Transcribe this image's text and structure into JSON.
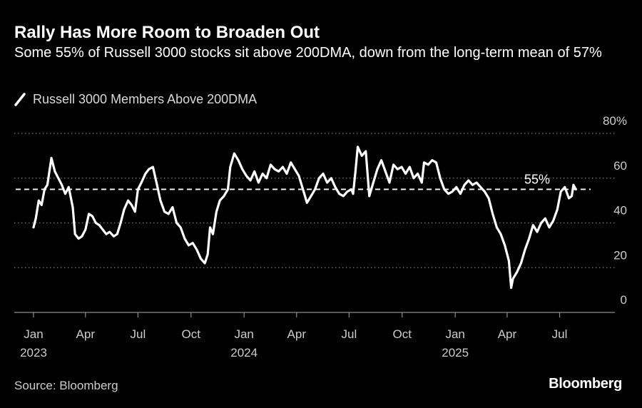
{
  "chart_data": {
    "type": "line",
    "title": "Rally Has More Room to Broaden Out",
    "subtitle": "Some 55% of Russell 3000 stocks sit above 200DMA, down from the long-term mean of 57%",
    "xlabel": "",
    "ylabel": "",
    "ylim": [
      0,
      80
    ],
    "y_ticks": [
      "0",
      "20",
      "40",
      "60",
      "80%"
    ],
    "x_ticks": [
      {
        "month": "Jan",
        "year": "2023",
        "date": "2023-01-01"
      },
      {
        "month": "Apr",
        "year": "",
        "date": "2023-04-01"
      },
      {
        "month": "Jul",
        "year": "",
        "date": "2023-07-01"
      },
      {
        "month": "Oct",
        "year": "",
        "date": "2023-10-01"
      },
      {
        "month": "Jan",
        "year": "2024",
        "date": "2024-01-01"
      },
      {
        "month": "Apr",
        "year": "",
        "date": "2024-04-01"
      },
      {
        "month": "Jul",
        "year": "",
        "date": "2024-07-01"
      },
      {
        "month": "Oct",
        "year": "",
        "date": "2024-10-01"
      },
      {
        "month": "Jan",
        "year": "2025",
        "date": "2025-01-01"
      },
      {
        "month": "Apr",
        "year": "",
        "date": "2025-04-01"
      },
      {
        "month": "Jul",
        "year": "",
        "date": "2025-07-01"
      }
    ],
    "grid": true,
    "legend_position": "top-left",
    "series": [
      {
        "name": "Russell 3000 Members Above 200DMA",
        "color": "#ffffff",
        "points": [
          [
            "2023-01-01",
            38
          ],
          [
            "2023-01-05",
            42
          ],
          [
            "2023-01-10",
            50
          ],
          [
            "2023-01-15",
            48
          ],
          [
            "2023-01-20",
            55
          ],
          [
            "2023-01-25",
            57
          ],
          [
            "2023-02-01",
            69
          ],
          [
            "2023-02-07",
            63
          ],
          [
            "2023-02-13",
            60
          ],
          [
            "2023-02-19",
            57
          ],
          [
            "2023-02-25",
            53
          ],
          [
            "2023-03-03",
            56
          ],
          [
            "2023-03-10",
            47
          ],
          [
            "2023-03-14",
            35
          ],
          [
            "2023-03-20",
            33
          ],
          [
            "2023-03-26",
            34
          ],
          [
            "2023-04-01",
            37
          ],
          [
            "2023-04-07",
            44
          ],
          [
            "2023-04-13",
            43
          ],
          [
            "2023-04-19",
            40
          ],
          [
            "2023-04-25",
            39
          ],
          [
            "2023-05-01",
            37
          ],
          [
            "2023-05-07",
            35
          ],
          [
            "2023-05-13",
            36
          ],
          [
            "2023-05-20",
            34
          ],
          [
            "2023-05-26",
            35
          ],
          [
            "2023-06-01",
            40
          ],
          [
            "2023-06-07",
            46
          ],
          [
            "2023-06-14",
            50
          ],
          [
            "2023-06-20",
            48
          ],
          [
            "2023-06-26",
            45
          ],
          [
            "2023-07-01",
            55
          ],
          [
            "2023-07-07",
            58
          ],
          [
            "2023-07-14",
            62
          ],
          [
            "2023-07-20",
            64
          ],
          [
            "2023-07-27",
            65
          ],
          [
            "2023-08-03",
            57
          ],
          [
            "2023-08-09",
            50
          ],
          [
            "2023-08-16",
            45
          ],
          [
            "2023-08-23",
            44
          ],
          [
            "2023-08-30",
            47
          ],
          [
            "2023-09-06",
            40
          ],
          [
            "2023-09-13",
            38
          ],
          [
            "2023-09-20",
            33
          ],
          [
            "2023-09-27",
            30
          ],
          [
            "2023-10-04",
            31
          ],
          [
            "2023-10-11",
            28
          ],
          [
            "2023-10-18",
            24
          ],
          [
            "2023-10-25",
            22
          ],
          [
            "2023-10-30",
            26
          ],
          [
            "2023-11-03",
            38
          ],
          [
            "2023-11-08",
            35
          ],
          [
            "2023-11-14",
            45
          ],
          [
            "2023-11-20",
            50
          ],
          [
            "2023-11-27",
            52
          ],
          [
            "2023-12-04",
            55
          ],
          [
            "2023-12-08",
            65
          ],
          [
            "2023-12-15",
            71
          ],
          [
            "2023-12-22",
            68
          ],
          [
            "2023-12-29",
            64
          ],
          [
            "2024-01-05",
            61
          ],
          [
            "2024-01-12",
            59
          ],
          [
            "2024-01-19",
            63
          ],
          [
            "2024-01-26",
            58
          ],
          [
            "2024-02-02",
            62
          ],
          [
            "2024-02-09",
            60
          ],
          [
            "2024-02-16",
            66
          ],
          [
            "2024-02-23",
            64
          ],
          [
            "2024-03-01",
            63
          ],
          [
            "2024-03-08",
            65
          ],
          [
            "2024-03-15",
            62
          ],
          [
            "2024-03-22",
            67
          ],
          [
            "2024-03-29",
            64
          ],
          [
            "2024-04-05",
            61
          ],
          [
            "2024-04-12",
            55
          ],
          [
            "2024-04-19",
            49
          ],
          [
            "2024-04-26",
            52
          ],
          [
            "2024-05-03",
            55
          ],
          [
            "2024-05-10",
            60
          ],
          [
            "2024-05-17",
            62
          ],
          [
            "2024-05-24",
            58
          ],
          [
            "2024-05-31",
            60
          ],
          [
            "2024-06-07",
            56
          ],
          [
            "2024-06-14",
            53
          ],
          [
            "2024-06-21",
            52
          ],
          [
            "2024-06-28",
            54
          ],
          [
            "2024-07-05",
            55
          ],
          [
            "2024-07-08",
            53
          ],
          [
            "2024-07-12",
            63
          ],
          [
            "2024-07-16",
            74
          ],
          [
            "2024-07-23",
            70
          ],
          [
            "2024-07-30",
            72
          ],
          [
            "2024-08-05",
            52
          ],
          [
            "2024-08-12",
            58
          ],
          [
            "2024-08-19",
            64
          ],
          [
            "2024-08-26",
            68
          ],
          [
            "2024-09-02",
            63
          ],
          [
            "2024-09-09",
            58
          ],
          [
            "2024-09-16",
            66
          ],
          [
            "2024-09-23",
            64
          ],
          [
            "2024-09-30",
            65
          ],
          [
            "2024-10-07",
            62
          ],
          [
            "2024-10-14",
            65
          ],
          [
            "2024-10-21",
            60
          ],
          [
            "2024-10-28",
            62
          ],
          [
            "2024-11-04",
            58
          ],
          [
            "2024-11-08",
            67
          ],
          [
            "2024-11-15",
            66
          ],
          [
            "2024-11-22",
            68
          ],
          [
            "2024-11-29",
            67
          ],
          [
            "2024-12-06",
            60
          ],
          [
            "2024-12-13",
            55
          ],
          [
            "2024-12-20",
            53
          ],
          [
            "2024-12-27",
            54
          ],
          [
            "2025-01-03",
            56
          ],
          [
            "2025-01-10",
            53
          ],
          [
            "2025-01-17",
            57
          ],
          [
            "2025-01-24",
            59
          ],
          [
            "2025-01-31",
            57
          ],
          [
            "2025-02-07",
            58
          ],
          [
            "2025-02-14",
            56
          ],
          [
            "2025-02-21",
            54
          ],
          [
            "2025-02-28",
            51
          ],
          [
            "2025-03-07",
            44
          ],
          [
            "2025-03-14",
            38
          ],
          [
            "2025-03-21",
            35
          ],
          [
            "2025-03-28",
            30
          ],
          [
            "2025-04-04",
            23
          ],
          [
            "2025-04-08",
            11
          ],
          [
            "2025-04-11",
            15
          ],
          [
            "2025-04-18",
            18
          ],
          [
            "2025-04-25",
            22
          ],
          [
            "2025-05-02",
            28
          ],
          [
            "2025-05-09",
            33
          ],
          [
            "2025-05-16",
            39
          ],
          [
            "2025-05-23",
            36
          ],
          [
            "2025-05-30",
            40
          ],
          [
            "2025-06-06",
            42
          ],
          [
            "2025-06-13",
            38
          ],
          [
            "2025-06-20",
            41
          ],
          [
            "2025-06-27",
            46
          ],
          [
            "2025-07-03",
            54
          ],
          [
            "2025-07-10",
            56
          ],
          [
            "2025-07-17",
            51
          ],
          [
            "2025-07-22",
            52
          ],
          [
            "2025-07-25",
            57
          ],
          [
            "2025-07-29",
            55
          ]
        ]
      }
    ],
    "reference_lines": [
      {
        "value": 55,
        "label": "55%",
        "style": "dashed"
      }
    ]
  },
  "source_text": "Source: Bloomberg",
  "brand_text": "Bloomberg"
}
